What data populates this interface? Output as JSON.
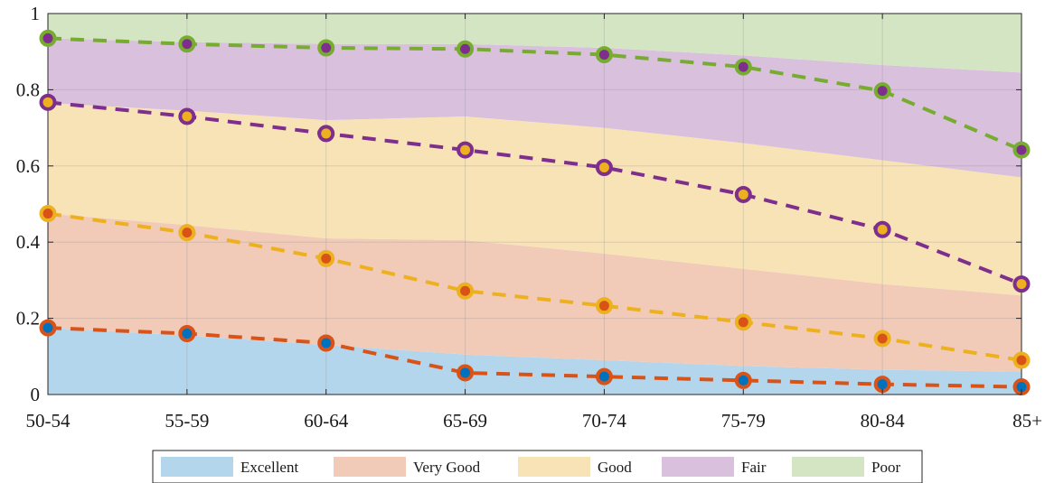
{
  "chart_data": {
    "type": "area",
    "title": "",
    "xlabel": "",
    "ylabel": "",
    "categories": [
      "50-54",
      "55-59",
      "60-64",
      "65-69",
      "70-74",
      "75-79",
      "80-84",
      "85+"
    ],
    "ylim": [
      0,
      1
    ],
    "yticks": [
      0,
      0.2,
      0.4,
      0.6,
      0.8,
      1
    ],
    "ytick_labels": [
      "0",
      "0.2",
      "0.4",
      "0.6",
      "0.8",
      "1"
    ],
    "grid": true,
    "legend_position": "bottom-center",
    "stacked": true,
    "series": [
      {
        "name": "Excellent",
        "values": [
          0.175,
          0.155,
          0.13,
          0.105,
          0.09,
          0.075,
          0.065,
          0.06
        ],
        "color": "#b3d6ec"
      },
      {
        "name": "Very Good",
        "values": [
          0.3,
          0.29,
          0.28,
          0.3,
          0.28,
          0.255,
          0.225,
          0.2
        ],
        "color": "#f1cbb8"
      },
      {
        "name": "Good",
        "values": [
          0.29,
          0.3,
          0.31,
          0.325,
          0.33,
          0.33,
          0.325,
          0.31
        ],
        "color": "#f8e3b7"
      },
      {
        "name": "Fair",
        "values": [
          0.17,
          0.18,
          0.2,
          0.19,
          0.21,
          0.23,
          0.25,
          0.275
        ],
        "color": "#d9c0dd"
      },
      {
        "name": "Poor",
        "values": [
          0.065,
          0.075,
          0.08,
          0.08,
          0.09,
          0.11,
          0.135,
          0.155
        ],
        "color": "#d3e5c2"
      }
    ],
    "lines": [
      {
        "values": [
          0.175,
          0.16,
          0.135,
          0.057,
          0.047,
          0.037,
          0.027,
          0.02
        ],
        "color": "#d95319",
        "fill": "#0072bd"
      },
      {
        "values": [
          0.475,
          0.425,
          0.357,
          0.272,
          0.233,
          0.19,
          0.147,
          0.09
        ],
        "color": "#edb120",
        "fill": "#d95319"
      },
      {
        "values": [
          0.767,
          0.73,
          0.685,
          0.642,
          0.596,
          0.525,
          0.433,
          0.29
        ],
        "color": "#7e2f8e",
        "fill": "#edb120"
      },
      {
        "values": [
          0.935,
          0.92,
          0.91,
          0.907,
          0.892,
          0.86,
          0.797,
          0.642
        ],
        "color": "#77ac30",
        "fill": "#7e2f8e"
      }
    ]
  }
}
